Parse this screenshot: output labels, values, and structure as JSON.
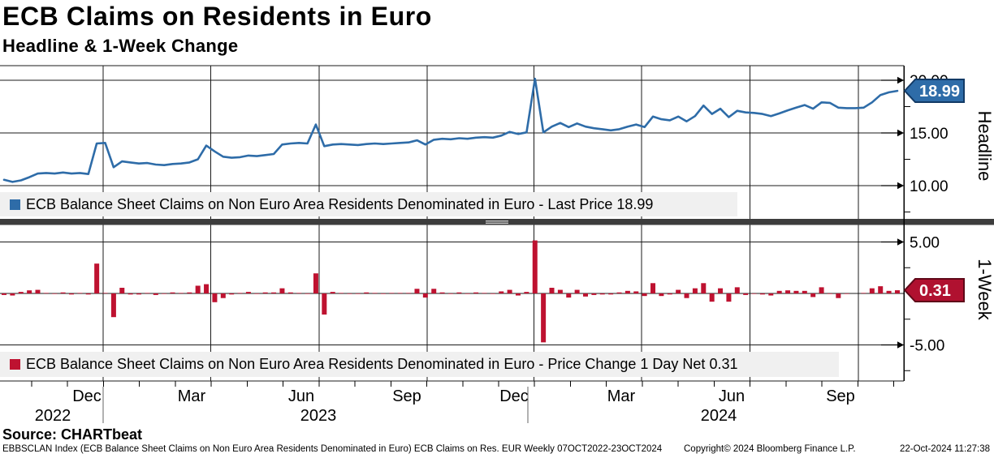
{
  "header": {
    "title": "ECB Claims on Residents in Euro",
    "subtitle": "Headline & 1-Week Change"
  },
  "colors": {
    "line_blue": "#2e6ca8",
    "bar_red": "#be1230",
    "badge_blue_fill": "#2e6ca8",
    "badge_blue_border": "#123a66",
    "badge_red_fill": "#b01130",
    "badge_red_border": "#5f0818",
    "legend_bg": "#f0f0f0",
    "separator": "#3d3d3d",
    "grid": "#1b1b1b"
  },
  "panels": [
    {
      "axis_title": "Headline",
      "legend": "ECB Balance Sheet Claims on Non Euro Area Residents Denominated in Euro - Last Price 18.99",
      "badge": "18.99",
      "tick_labels": [
        "20.00",
        "15.00",
        "10.00"
      ],
      "last_price": 18.99
    },
    {
      "axis_title": "1-Week",
      "legend": "ECB Balance Sheet Claims on Non Euro Area Residents Denominated in Euro - Price Change 1 Day Net 0.31",
      "badge": "0.31",
      "tick_labels": [
        "5.00",
        "-5.00"
      ],
      "last_change": 0.31
    }
  ],
  "x_axis": {
    "month_labels": [
      "Dec",
      "Mar",
      "Jun",
      "Sep",
      "Dec",
      "Mar",
      "Jun",
      "Sep"
    ],
    "year_labels": [
      "2022",
      "2023",
      "2024"
    ]
  },
  "source": "Source: CHARTbeat",
  "footer": {
    "left": "EBBSCLAN Index (ECB Balance Sheet Claims on Non Euro Area Residents Denominated in Euro) ECB Claims on Res. EUR  Weekly 07OCT2022-23OCT2024",
    "copyright": "Copyright© 2024 Bloomberg Finance L.P.",
    "timestamp": "22-Oct-2024 11:27:38"
  },
  "chart_data": [
    {
      "type": "line",
      "name": "ECB Balance Sheet Claims on Non Euro Area Residents Denominated in Euro - Last Price",
      "panel": "Headline",
      "frequency": "weekly",
      "x_start": "07OCT2022",
      "x_end": "23OCT2024",
      "ylim": [
        6.9,
        21.4
      ],
      "yticks": [
        10,
        15,
        20
      ],
      "grid": true,
      "last_value": 18.99,
      "values": [
        10.55,
        10.35,
        10.5,
        10.8,
        11.15,
        11.2,
        11.15,
        11.25,
        11.15,
        11.2,
        11.1,
        14.0,
        14.05,
        11.75,
        12.3,
        12.2,
        12.1,
        12.15,
        12.0,
        11.95,
        12.05,
        12.1,
        12.2,
        12.5,
        13.8,
        13.25,
        12.75,
        12.65,
        12.7,
        12.85,
        12.8,
        12.9,
        13.0,
        13.9,
        14.0,
        14.05,
        14.0,
        15.8,
        13.75,
        13.9,
        13.95,
        13.9,
        13.85,
        13.95,
        14.0,
        13.95,
        14.0,
        14.05,
        14.1,
        14.3,
        13.9,
        14.35,
        14.45,
        14.4,
        14.5,
        14.45,
        14.55,
        14.6,
        14.55,
        14.75,
        15.1,
        14.9,
        15.05,
        20.15,
        15.05,
        15.6,
        15.95,
        15.55,
        15.9,
        15.6,
        15.45,
        15.35,
        15.25,
        15.35,
        15.6,
        15.8,
        15.55,
        16.55,
        16.3,
        16.2,
        16.55,
        16.1,
        16.6,
        17.6,
        16.8,
        17.3,
        16.5,
        17.1,
        16.95,
        16.9,
        16.8,
        16.6,
        16.85,
        17.15,
        17.4,
        17.65,
        17.3,
        17.9,
        17.85,
        17.4,
        17.35,
        17.35,
        17.4,
        17.9,
        18.6,
        18.85,
        18.99
      ]
    },
    {
      "type": "bar",
      "name": "ECB Balance Sheet Claims on Non Euro Area Residents Denominated in Euro - Price Change 1 Day Net",
      "panel": "1-Week",
      "frequency": "weekly",
      "x_start": "07OCT2022",
      "x_end": "23OCT2024",
      "ylim": [
        -8.5,
        6.6
      ],
      "yticks": [
        -5,
        0,
        5
      ],
      "grid": true,
      "last_value": 0.31,
      "values": [
        -0.15,
        -0.2,
        0.15,
        0.3,
        0.35,
        0.05,
        -0.05,
        0.1,
        -0.1,
        0.05,
        -0.1,
        2.9,
        0.05,
        -2.3,
        0.55,
        -0.1,
        -0.1,
        0.05,
        -0.15,
        -0.05,
        0.1,
        0.05,
        0.1,
        0.75,
        0.9,
        -0.85,
        -0.45,
        -0.1,
        0.05,
        0.15,
        -0.05,
        0.1,
        0.1,
        0.5,
        0.1,
        0.05,
        -0.05,
        1.95,
        -2.05,
        0.15,
        0.05,
        -0.05,
        -0.05,
        0.1,
        0.05,
        -0.05,
        0.05,
        0.05,
        0.05,
        0.45,
        -0.4,
        0.45,
        0.1,
        -0.05,
        0.1,
        -0.05,
        0.1,
        0.05,
        -0.05,
        0.2,
        0.35,
        -0.2,
        0.15,
        5.15,
        -4.75,
        0.55,
        0.35,
        -0.4,
        0.35,
        -0.3,
        -0.15,
        -0.1,
        -0.1,
        0.1,
        0.25,
        0.2,
        -0.25,
        1.0,
        -0.25,
        -0.1,
        0.35,
        -0.45,
        0.5,
        1.0,
        -0.8,
        0.5,
        -0.8,
        0.6,
        -0.15,
        -0.05,
        -0.1,
        -0.2,
        0.25,
        0.3,
        0.25,
        0.25,
        -0.35,
        0.6,
        -0.05,
        -0.45,
        -0.05,
        0.0,
        0.05,
        0.5,
        0.7,
        0.25,
        0.31
      ]
    }
  ]
}
